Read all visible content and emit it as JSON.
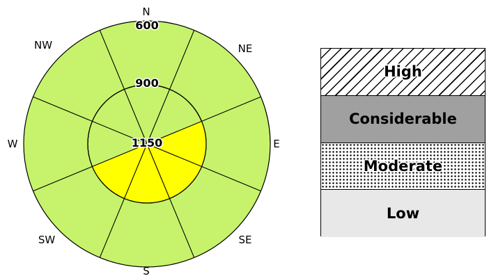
{
  "rose": {
    "directions": [
      "N",
      "NE",
      "E",
      "SE",
      "S",
      "SW",
      "W",
      "NW"
    ],
    "elevation_labels": [
      "600",
      "900",
      "1150"
    ],
    "colors": {
      "base": "#c6f36b",
      "highlight": "#ffff00",
      "stroke": "#000000"
    },
    "highlighted_sectors": [
      {
        "ring": "inner",
        "from": "E",
        "to": "SW",
        "color_level": "Moderate"
      }
    ]
  },
  "legend": {
    "items": [
      {
        "label": "High",
        "pattern": "hatch"
      },
      {
        "label": "Considerable",
        "pattern": "solid-gray"
      },
      {
        "label": "Moderate",
        "pattern": "dots"
      },
      {
        "label": "Low",
        "pattern": "light-gray"
      }
    ]
  }
}
